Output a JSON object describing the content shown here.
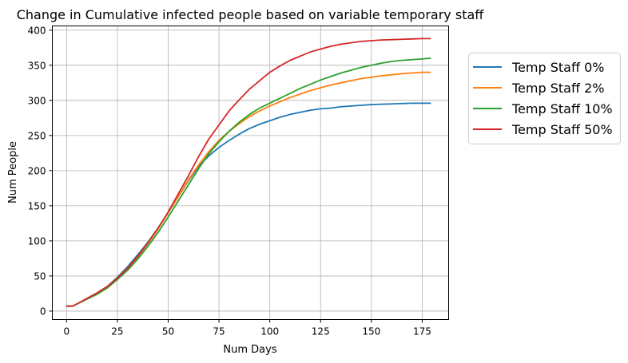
{
  "chart_data": {
    "type": "line",
    "title": "Change in Cumulative infected people based on variable temporary staff",
    "xlabel": "Num Days",
    "ylabel": "Num People",
    "xlim": [
      -7,
      188
    ],
    "ylim": [
      -12,
      406
    ],
    "xticks": [
      0,
      25,
      50,
      75,
      100,
      125,
      150,
      175
    ],
    "yticks": [
      0,
      50,
      100,
      150,
      200,
      250,
      300,
      350,
      400
    ],
    "grid": true,
    "legend_position": "outside-right",
    "x": [
      0,
      3,
      5,
      10,
      15,
      20,
      25,
      30,
      35,
      40,
      45,
      50,
      55,
      60,
      65,
      70,
      75,
      80,
      85,
      90,
      95,
      100,
      105,
      110,
      115,
      120,
      125,
      130,
      135,
      140,
      145,
      150,
      155,
      160,
      165,
      170,
      175,
      179
    ],
    "series": [
      {
        "name": "Temp Staff 0%",
        "color": "#1f77b4",
        "values": [
          7,
          7,
          10,
          17,
          25,
          35,
          48,
          63,
          80,
          98,
          118,
          140,
          163,
          186,
          206,
          221,
          233,
          243,
          252,
          260,
          266,
          271,
          276,
          280,
          283,
          286,
          288,
          289,
          291,
          292,
          293,
          294,
          294.5,
          295,
          295.5,
          296,
          296,
          296
        ]
      },
      {
        "name": "Temp Staff 2%",
        "color": "#ff7f0e",
        "values": [
          7,
          7,
          10,
          17,
          24,
          33,
          45,
          60,
          77,
          96,
          117,
          140,
          163,
          187,
          208,
          227,
          243,
          256,
          267,
          277,
          285,
          292,
          298,
          304,
          309,
          314,
          318,
          322,
          325,
          328,
          331,
          333,
          335,
          336.5,
          338,
          339,
          340,
          340
        ]
      },
      {
        "name": "Temp Staff 10%",
        "color": "#2ca02c",
        "values": [
          7,
          7,
          10,
          17,
          24,
          33,
          45,
          58,
          74,
          92,
          112,
          134,
          157,
          180,
          203,
          224,
          241,
          256,
          269,
          280,
          289,
          296,
          303,
          310,
          317,
          323,
          329,
          334,
          339,
          343,
          347,
          350,
          353,
          355.5,
          357,
          358,
          359,
          360
        ]
      },
      {
        "name": "Temp Staff 50%",
        "color": "#d62728",
        "values": [
          7,
          7,
          10,
          18,
          26,
          35,
          47,
          61,
          78,
          97,
          118,
          141,
          167,
          193,
          220,
          245,
          265,
          285,
          301,
          316,
          328,
          340,
          349,
          357,
          363,
          369,
          373,
          377,
          380,
          382,
          384,
          385,
          386,
          386.5,
          387,
          387.5,
          388,
          388
        ]
      }
    ]
  }
}
